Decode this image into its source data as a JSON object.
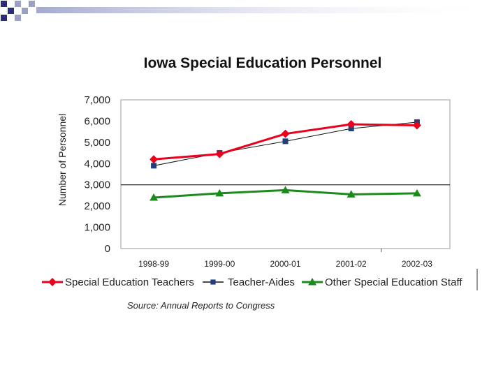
{
  "colors": {
    "deco_dark": "#2c2c7a",
    "deco_light": "#9ba0c8",
    "teachers": "#e8001c",
    "aides": "#1f3f7f",
    "other": "#1d8a1d"
  },
  "source_note": "Source: Annual Reports to Congress",
  "chart_data": {
    "type": "line",
    "title": "Iowa Special Education Personnel",
    "xlabel": "",
    "ylabel": "Number of Personnel",
    "categories": [
      "1998-99",
      "1999-00",
      "2000-01",
      "2001-02",
      "2002-03"
    ],
    "ylim": [
      0,
      7000
    ],
    "yticks": [
      "0",
      "1,000",
      "2,000",
      "3,000",
      "4,000",
      "5,000",
      "6,000",
      "7,000"
    ],
    "grid": "horizontal at 3,000",
    "legend_position": "bottom",
    "series": [
      {
        "name": "Special Education Teachers",
        "marker": "diamond",
        "color_key": "teachers",
        "values": [
          4200,
          4450,
          5400,
          5850,
          5800
        ]
      },
      {
        "name": "Teacher-Aides",
        "marker": "square",
        "color_key": "aides",
        "values": [
          3900,
          4500,
          5050,
          5650,
          5950
        ]
      },
      {
        "name": "Other Special Education Staff",
        "marker": "triangle",
        "color_key": "other",
        "values": [
          2400,
          2600,
          2750,
          2550,
          2600
        ]
      }
    ]
  }
}
